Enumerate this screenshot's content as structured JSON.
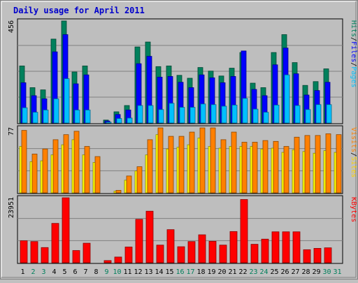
{
  "title": "Daily usage for April 2011",
  "days": [
    "1",
    "2",
    "3",
    "4",
    "5",
    "6",
    "7",
    "8",
    "9",
    "10",
    "11",
    "12",
    "13",
    "14",
    "15",
    "16",
    "17",
    "18",
    "19",
    "20",
    "21",
    "22",
    "23",
    "24",
    "25",
    "26",
    "27",
    "28",
    "29",
    "30",
    "31"
  ],
  "weekend_days": [
    "2",
    "3",
    "9",
    "10",
    "16",
    "17",
    "23",
    "24",
    "30",
    "31"
  ],
  "colors": {
    "background": "#c0c0c0",
    "plot": "#bebebe",
    "title": "#0000cc",
    "hits": "#00805c",
    "files": "#0000ff",
    "pages": "#00c0ff",
    "visits": "#ff8000",
    "sites": "#ffff00",
    "kbytes": "#ff0000",
    "weekday_label": "#000000",
    "weekend_label": "#00805c"
  },
  "labels": {
    "pages": "Pages",
    "files": "Files",
    "hits": "Hits",
    "sites": "Sites",
    "visits": "Visits",
    "kbytes": "KBytes",
    "separator": "/"
  },
  "chart_data": [
    {
      "type": "bar",
      "name": "hits-files-pages",
      "ymax_label": "456",
      "ylim": [
        0,
        456
      ],
      "categories": [
        "1",
        "2",
        "3",
        "4",
        "5",
        "6",
        "7",
        "8",
        "9",
        "10",
        "11",
        "12",
        "13",
        "14",
        "15",
        "16",
        "17",
        "18",
        "19",
        "20",
        "21",
        "22",
        "23",
        "24",
        "25",
        "26",
        "27",
        "28",
        "29",
        "30",
        "31"
      ],
      "series": [
        {
          "name": "Hits",
          "values": [
            255,
            158,
            148,
            375,
            456,
            228,
            255,
            0,
            13,
            50,
            78,
            340,
            362,
            252,
            255,
            213,
            200,
            248,
            232,
            210,
            245,
            315,
            178,
            158,
            315,
            395,
            270,
            168,
            185,
            242,
            0
          ]
        },
        {
          "name": "Files",
          "values": [
            180,
            122,
            108,
            318,
            395,
            175,
            215,
            0,
            9,
            38,
            58,
            265,
            298,
            205,
            208,
            182,
            158,
            215,
            202,
            180,
            208,
            322,
            150,
            122,
            260,
            335,
            220,
            125,
            145,
            182,
            0
          ]
        },
        {
          "name": "Pages",
          "values": [
            68,
            48,
            58,
            108,
            198,
            58,
            58,
            0,
            4,
            20,
            22,
            78,
            78,
            60,
            88,
            70,
            70,
            85,
            82,
            75,
            80,
            110,
            62,
            48,
            80,
            215,
            78,
            60,
            82,
            82,
            0
          ]
        }
      ]
    },
    {
      "type": "bar",
      "name": "visits-sites",
      "ymax_label": "77",
      "ylim": [
        0,
        77
      ],
      "categories": [
        "1",
        "2",
        "3",
        "4",
        "5",
        "6",
        "7",
        "8",
        "9",
        "10",
        "11",
        "12",
        "13",
        "14",
        "15",
        "16",
        "17",
        "18",
        "19",
        "20",
        "21",
        "22",
        "23",
        "24",
        "25",
        "26",
        "27",
        "28",
        "29",
        "30",
        "31"
      ],
      "series": [
        {
          "name": "Visits",
          "values": [
            74,
            46,
            52,
            63,
            69,
            73,
            55,
            43,
            0,
            3,
            20,
            31,
            63,
            77,
            67,
            67,
            72,
            77,
            77,
            63,
            72,
            60,
            60,
            62,
            61,
            55,
            66,
            68,
            68,
            70,
            69
          ]
        },
        {
          "name": "Sites",
          "values": [
            55,
            37,
            38,
            45,
            57,
            63,
            45,
            36,
            0,
            2,
            15,
            26,
            45,
            69,
            52,
            54,
            57,
            65,
            55,
            53,
            55,
            55,
            55,
            52,
            53,
            48,
            51,
            49,
            47,
            50,
            48
          ]
        }
      ]
    },
    {
      "type": "bar",
      "name": "kbytes",
      "ymax_label": "23951",
      "ylim": [
        0,
        23951
      ],
      "categories": [
        "1",
        "2",
        "3",
        "4",
        "5",
        "6",
        "7",
        "8",
        "9",
        "10",
        "11",
        "12",
        "13",
        "14",
        "15",
        "16",
        "17",
        "18",
        "19",
        "20",
        "21",
        "22",
        "23",
        "24",
        "25",
        "26",
        "27",
        "28",
        "29",
        "30",
        "31"
      ],
      "series": [
        {
          "name": "KBytes",
          "values": [
            8100,
            7800,
            5600,
            14500,
            23951,
            4500,
            7200,
            0,
            800,
            2100,
            5800,
            16000,
            19000,
            6500,
            12200,
            5900,
            7800,
            10300,
            7900,
            6500,
            11500,
            23300,
            6800,
            8700,
            11400,
            11400,
            11400,
            4800,
            5300,
            5500,
            0
          ]
        }
      ]
    }
  ]
}
